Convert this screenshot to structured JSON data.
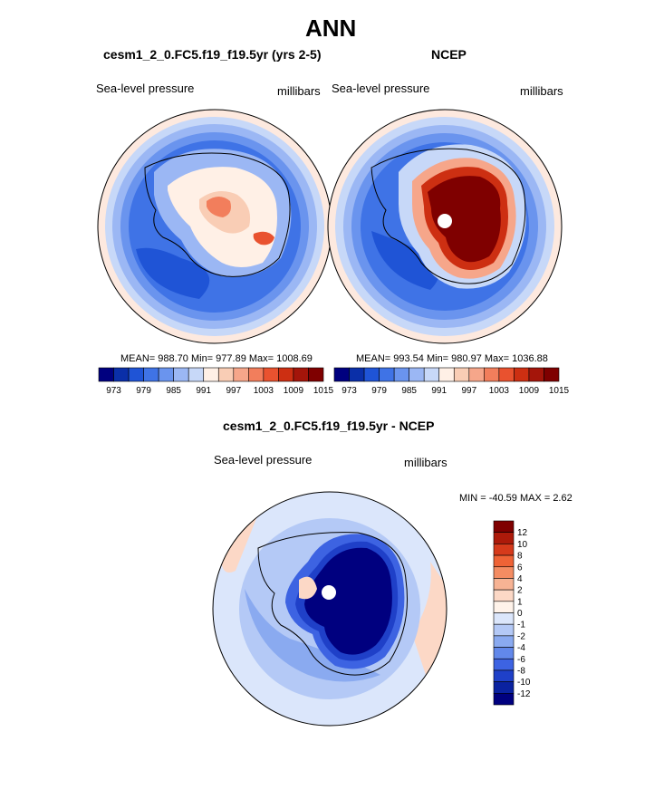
{
  "title": "ANN",
  "panels": [
    {
      "heading": "cesm1_2_0.FC5.f19_f19.5yr (yrs 2-5)",
      "variable": "Sea-level pressure",
      "units": "millibars",
      "stats": "MEAN= 988.70  Min= 977.89  Max= 1008.69"
    },
    {
      "heading": "NCEP",
      "variable": "Sea-level pressure",
      "units": "millibars",
      "stats": "MEAN= 993.54  Min= 980.97  Max= 1036.88"
    },
    {
      "heading": "cesm1_2_0.FC5.f19_f19.5yr - NCEP",
      "variable": "Sea-level pressure",
      "units": "millibars",
      "stats": "MIN = -40.59 MAX =   2.62"
    }
  ],
  "colorbar_main": {
    "colors": [
      "#00007f",
      "#0a2fa8",
      "#1f54d6",
      "#3f73e6",
      "#6a94ee",
      "#9bb7f4",
      "#c7d8f8",
      "#fff0e6",
      "#f9cdb5",
      "#f6a68a",
      "#f27e5c",
      "#e9522f",
      "#cd2f12",
      "#a4150a",
      "#7f0000"
    ],
    "tick_labels": [
      "973",
      "979",
      "985",
      "991",
      "997",
      "1003",
      "1009",
      "1015"
    ]
  },
  "colorbar_diff": {
    "colors": [
      "#7f0000",
      "#ad1a0a",
      "#d63a1b",
      "#ef6336",
      "#f48c62",
      "#f7b394",
      "#fcd8c6",
      "#fff3ea",
      "#dbe6fb",
      "#b4c9f6",
      "#8aaaf0",
      "#6288ea",
      "#3d63e2",
      "#1f40c8",
      "#0a22a0",
      "#00007f"
    ],
    "tick_labels": [
      "12",
      "10",
      "8",
      "6",
      "4",
      "2",
      "1",
      "0",
      "-1",
      "-2",
      "-4",
      "-6",
      "-8",
      "-10",
      "-12"
    ]
  },
  "map_colors": {
    "outer_ring": "#fde9df",
    "ocean_low": "#4f7de9",
    "ocean_mid": "#6a94ee",
    "ocean_light": "#8fb0f2",
    "ocean_pale": "#b7cdf6",
    "high_core": "#7f0000",
    "high_mid": "#cd2f12",
    "diff_low": "#00007f",
    "diff_mid": "#1f40c8"
  }
}
